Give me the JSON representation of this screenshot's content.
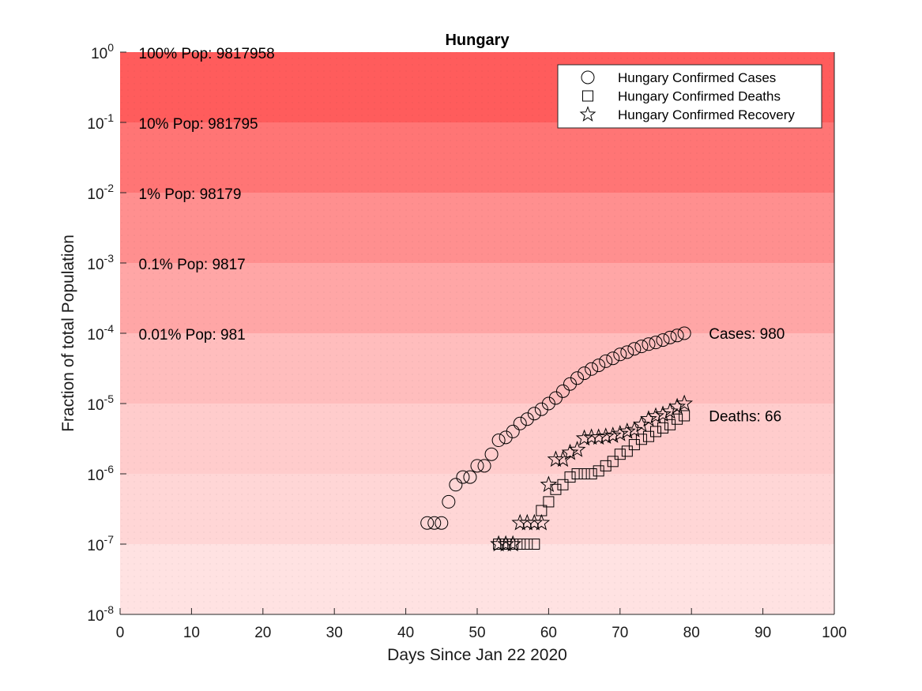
{
  "chart_data": {
    "type": "scatter",
    "title": "Hungary",
    "xlabel": "Days Since Jan 22 2020",
    "ylabel": "Fraction of total Population",
    "xlim": [
      0,
      100
    ],
    "ylim": [
      1e-08,
      1
    ],
    "yscale": "log",
    "xticks": [
      0,
      10,
      20,
      30,
      40,
      50,
      60,
      70,
      80,
      90,
      100
    ],
    "yticks": [
      {
        "value": 1e-08,
        "base": "10",
        "exp": "-8"
      },
      {
        "value": 1e-07,
        "base": "10",
        "exp": "-7"
      },
      {
        "value": 1e-06,
        "base": "10",
        "exp": "-6"
      },
      {
        "value": 1e-05,
        "base": "10",
        "exp": "-5"
      },
      {
        "value": 0.0001,
        "base": "10",
        "exp": "-4"
      },
      {
        "value": 0.001,
        "base": "10",
        "exp": "-3"
      },
      {
        "value": 0.01,
        "base": "10",
        "exp": "-2"
      },
      {
        "value": 0.1,
        "base": "10",
        "exp": "-1"
      },
      {
        "value": 1,
        "base": "10",
        "exp": "0"
      }
    ],
    "population_bands": [
      {
        "from": 0.1,
        "to": 1,
        "label": "100% Pop: 9817958",
        "color": "#ff5c5c"
      },
      {
        "from": 0.01,
        "to": 0.1,
        "label": "10% Pop: 981795",
        "color": "#ff7575"
      },
      {
        "from": 0.001,
        "to": 0.01,
        "label": "1% Pop: 98179",
        "color": "#ff8f8f"
      },
      {
        "from": 0.0001,
        "to": 0.001,
        "label": "0.1% Pop: 9817",
        "color": "#ffa6a6"
      },
      {
        "from": 1e-05,
        "to": 0.0001,
        "label": "0.01% Pop: 981",
        "color": "#ffbdbd"
      },
      {
        "from": 1e-06,
        "to": 1e-05,
        "label": "",
        "color": "#ffcccc"
      },
      {
        "from": 1e-07,
        "to": 1e-06,
        "label": "",
        "color": "#ffd6d6"
      },
      {
        "from": 1e-08,
        "to": 1e-07,
        "label": "",
        "color": "#ffe2e2"
      }
    ],
    "legend": {
      "position": "top-right",
      "entries": [
        {
          "label": "Hungary Confirmed Cases",
          "marker": "circle"
        },
        {
          "label": "Hungary Confirmed Deaths",
          "marker": "square"
        },
        {
          "label": "Hungary Confirmed Recovery",
          "marker": "star"
        }
      ]
    },
    "series": [
      {
        "name": "Hungary Confirmed Cases",
        "marker": "circle",
        "x": [
          43,
          44,
          45,
          46,
          47,
          48,
          49,
          50,
          51,
          52,
          53,
          54,
          55,
          56,
          57,
          58,
          59,
          60,
          61,
          62,
          63,
          64,
          65,
          66,
          67,
          68,
          69,
          70,
          71,
          72,
          73,
          74,
          75,
          76,
          77,
          78,
          79
        ],
        "y": [
          2e-07,
          2e-07,
          2e-07,
          4e-07,
          7e-07,
          9e-07,
          9e-07,
          1.3e-06,
          1.3e-06,
          1.9e-06,
          3e-06,
          3.3e-06,
          4e-06,
          5.2e-06,
          6e-06,
          7.2e-06,
          8.3e-06,
          1e-05,
          1.2e-05,
          1.5e-05,
          1.9e-05,
          2.3e-05,
          2.7e-05,
          3.1e-05,
          3.5e-05,
          4e-05,
          4.4e-05,
          5e-05,
          5.4e-05,
          6e-05,
          6.5e-05,
          7e-05,
          7.4e-05,
          8e-05,
          8.7e-05,
          9.3e-05,
          0.0001
        ]
      },
      {
        "name": "Hungary Confirmed Deaths",
        "marker": "square",
        "x": [
          53,
          54,
          55,
          56,
          57,
          58,
          59,
          60,
          61,
          62,
          63,
          64,
          65,
          66,
          67,
          68,
          69,
          70,
          71,
          72,
          73,
          74,
          75,
          76,
          77,
          78,
          79
        ],
        "y": [
          1e-07,
          1e-07,
          1e-07,
          1e-07,
          1e-07,
          1e-07,
          3e-07,
          4e-07,
          6e-07,
          7e-07,
          9e-07,
          1e-06,
          1e-06,
          1e-06,
          1.1e-06,
          1.3e-06,
          1.5e-06,
          1.9e-06,
          2.1e-06,
          2.6e-06,
          3.1e-06,
          3.4e-06,
          4e-06,
          4.5e-06,
          5e-06,
          6e-06,
          6.7e-06
        ]
      },
      {
        "name": "Hungary Confirmed Recovery",
        "marker": "star",
        "x": [
          53,
          54,
          55,
          56,
          57,
          58,
          59,
          60,
          61,
          62,
          63,
          64,
          65,
          66,
          67,
          68,
          69,
          70,
          71,
          72,
          73,
          74,
          75,
          76,
          77,
          78,
          79
        ],
        "y": [
          1e-07,
          1e-07,
          1e-07,
          2e-07,
          2e-07,
          2e-07,
          2e-07,
          7e-07,
          1.6e-06,
          1.6e-06,
          2e-06,
          2.2e-06,
          3.2e-06,
          3.3e-06,
          3.3e-06,
          3.4e-06,
          3.5e-06,
          3.7e-06,
          4e-06,
          4.2e-06,
          5e-06,
          6e-06,
          6.6e-06,
          7e-06,
          7.7e-06,
          9e-06,
          1e-05
        ]
      }
    ],
    "annotations": [
      {
        "text": "Cases: 980",
        "x": 82,
        "y": 0.0001
      },
      {
        "text": "Deaths: 66",
        "x": 82,
        "y": 6.7e-06
      }
    ]
  }
}
